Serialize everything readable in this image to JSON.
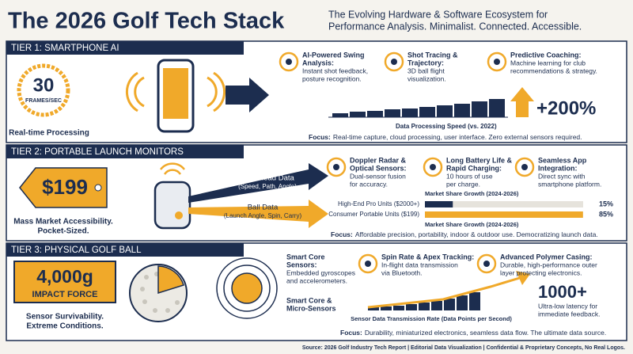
{
  "header": {
    "title": "The 2026 Golf Tech Stack",
    "subtitle_lines": [
      "The Evolving Hardware & Software Ecosystem for",
      "Performance Analysis. Minimalist. Connected. Accessible."
    ]
  },
  "tiers": [
    {
      "label": "TIER 1: SMARTPHONE AI",
      "stat_value": "30",
      "stat_unit": "FRAMES/SEC",
      "stat_caption": "Real-time Processing",
      "features": [
        {
          "title_lines": [
            "AI-Powered Swing",
            "Analysis:"
          ],
          "desc_lines": [
            "Instant shot feedback,",
            "posture recognition."
          ]
        },
        {
          "title_lines": [
            "Shot Tracing &",
            "Trajectory:"
          ],
          "desc_lines": [
            "3D ball flight",
            "visualization."
          ]
        },
        {
          "title_lines": [
            "Predictive Coaching:"
          ],
          "desc_lines": [
            "Machine learning for club",
            "recommendations & strategy."
          ]
        }
      ],
      "chart_caption": "Data Processing Speed (vs. 2022)",
      "growth": "+200%",
      "focus_label": "Focus:",
      "focus_text": "Real-time capture, cloud processing, user interface. Zero external sensors required."
    },
    {
      "label": "TIER 2: PORTABLE LAUNCH MONITORS",
      "price": "$199",
      "caption_lines": [
        "Mass Market Accessibility.",
        "Pocket-Sized."
      ],
      "flows": [
        {
          "title": "Club Head Data",
          "detail": "(Speed, Path, Angle)"
        },
        {
          "title": "Ball Data",
          "detail": "(Launch Angle, Spin, Carry)"
        }
      ],
      "features": [
        {
          "title_lines": [
            "Doppler Radar &",
            "Optical Sensors:"
          ],
          "desc_lines": [
            "Dual-sensor fusion",
            "for accuracy."
          ]
        },
        {
          "title_lines": [
            "Long Battery Life &",
            "Rapid Charging:"
          ],
          "desc_lines": [
            "10 hours of use",
            "per charge."
          ]
        },
        {
          "title_lines": [
            "Seamless App",
            "Integration:"
          ],
          "desc_lines": [
            "Direct sync with",
            "smartphone platform."
          ]
        }
      ],
      "market_share": {
        "title": "Market Share Growth (2024-2026)",
        "rows": [
          {
            "label": "High-End Pro Units ($2000+)",
            "value": 15,
            "value_label": "15%"
          },
          {
            "label": "Consumer Portable Units ($199)",
            "value": 85,
            "value_label": "85%"
          }
        ],
        "caption": "Market Share Growth (2024-2026)"
      },
      "focus_label": "Focus:",
      "focus_text": "Affordable precision, portability, indoor & outdoor use. Democratizing launch data."
    },
    {
      "label": "TIER 3: PHYSICAL GOLF BALL",
      "stat_value": "4,000g",
      "stat_unit": "IMPACT FORCE",
      "caption_lines": [
        "Sensor Survivability.",
        "Extreme Conditions."
      ],
      "callouts": [
        {
          "title_lines": [
            "Smart Core",
            "Sensors:"
          ],
          "desc_lines": [
            "Embedded gyroscopes",
            "and accelerometers."
          ]
        },
        {
          "title_lines": [
            "Smart Core &",
            "Micro-Sensors"
          ],
          "desc_lines": []
        }
      ],
      "features": [
        {
          "title_lines": [
            "Spin Rate & Apex Tracking:"
          ],
          "desc_lines": [
            "In-flight data transmission",
            "via Bluetooth."
          ]
        },
        {
          "title_lines": [
            "Advanced Polymer Casing:"
          ],
          "desc_lines": [
            "Durable, high-performance outer",
            "layer protecting electronics."
          ]
        }
      ],
      "chart_caption": "Sensor Data Transmission Rate (Data Points per Second)",
      "rate": "1000+",
      "rate_desc_lines": [
        "Ultra-low latency for",
        "immediate feedback."
      ],
      "focus_label": "Focus:",
      "focus_text": "Durability, miniaturized electronics, seamless data flow. The ultimate data source."
    }
  ],
  "footer": "Source: 2026 Golf Industry Tech Report | Editorial Data Visualization | Confidential & Proprietary Concepts, No Real Logos."
}
